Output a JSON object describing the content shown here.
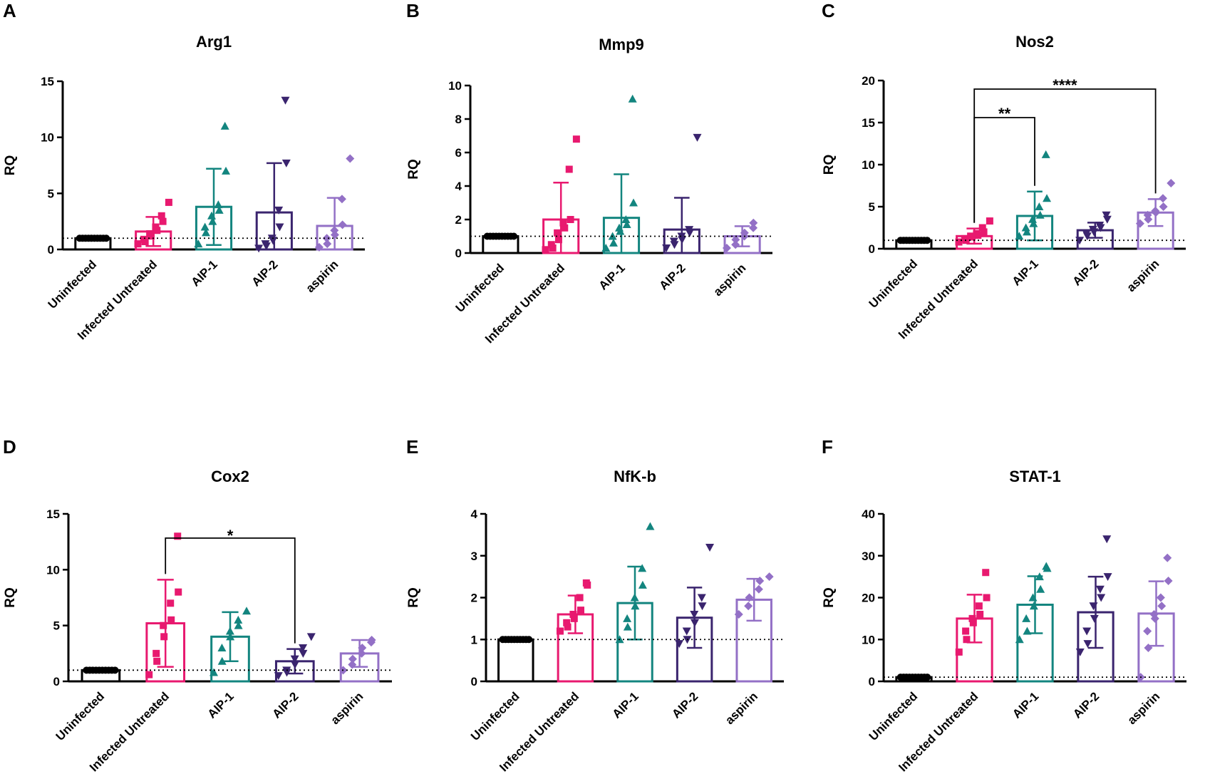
{
  "figure": {
    "group_colors": {
      "Uninfected": "#000000",
      "Infected Untreated": "#e8196f",
      "AIP-1": "#13857f",
      "AIP-2": "#3a246e",
      "aspirin": "#9370c6"
    },
    "markers": {
      "Uninfected": "circle",
      "Infected Untreated": "square",
      "AIP-1": "triangle-up",
      "AIP-2": "triangle-down",
      "aspirin": "diamond"
    }
  },
  "chart_data": [
    {
      "panel": "A",
      "type": "bar",
      "title": "Arg1",
      "ylabel": "RQ",
      "ylim": [
        0,
        15
      ],
      "yticks": [
        0,
        5,
        10,
        15
      ],
      "reference_line": 1,
      "categories": [
        "Uninfected",
        "Infected Untreated",
        "AIP-1",
        "AIP-2",
        "aspirin"
      ],
      "values": [
        1.0,
        1.6,
        3.8,
        3.3,
        2.1
      ],
      "errors": [
        0,
        1.3,
        3.4,
        4.4,
        2.5
      ],
      "points": [
        [
          1,
          1,
          1,
          1,
          1,
          1,
          1,
          1,
          1,
          1
        ],
        [
          0.5,
          0.7,
          0.9,
          1.2,
          1.4,
          1.7,
          2.0,
          2.5,
          3.0,
          4.2
        ],
        [
          0.5,
          1.5,
          2.0,
          2.5,
          3.0,
          3.5,
          4.0,
          7.0,
          11.0
        ],
        [
          0.1,
          0.3,
          0.5,
          0.8,
          1.0,
          2.0,
          3.5,
          7.7,
          13.3
        ],
        [
          0.2,
          0.5,
          1.0,
          1.3,
          1.7,
          2.2,
          4.5,
          8.1
        ]
      ],
      "significance": []
    },
    {
      "panel": "B",
      "type": "bar",
      "title": "Mmp9",
      "ylabel": "RQ",
      "ylim": [
        0,
        10
      ],
      "yticks": [
        0,
        2,
        4,
        6,
        8,
        10
      ],
      "reference_line": 1,
      "categories": [
        "Uninfected",
        "Infected Untreated",
        "AIP-1",
        "AIP-2",
        "aspirin"
      ],
      "values": [
        1.0,
        2.0,
        2.1,
        1.4,
        1.0
      ],
      "errors": [
        0,
        2.2,
        2.6,
        1.9,
        0.6
      ],
      "points": [
        [
          1,
          1,
          1,
          1,
          1,
          1,
          1,
          1,
          1,
          1
        ],
        [
          0.2,
          0.3,
          0.5,
          0.8,
          1.2,
          1.5,
          1.8,
          2.0,
          5.0,
          6.8
        ],
        [
          0.3,
          0.6,
          1.0,
          1.3,
          1.5,
          1.7,
          2.0,
          3.0,
          9.2
        ],
        [
          0.3,
          0.5,
          0.7,
          0.8,
          1.0,
          1.2,
          1.4,
          6.9
        ],
        [
          0.3,
          0.5,
          0.8,
          1.0,
          1.2,
          1.5,
          1.8
        ]
      ],
      "significance": []
    },
    {
      "panel": "C",
      "type": "bar",
      "title": "Nos2",
      "ylabel": "RQ",
      "ylim": [
        0,
        20
      ],
      "yticks": [
        0,
        5,
        10,
        15,
        20
      ],
      "reference_line": 1,
      "categories": [
        "Uninfected",
        "Infected Untreated",
        "AIP-1",
        "AIP-2",
        "aspirin"
      ],
      "values": [
        1.0,
        1.5,
        3.9,
        2.2,
        4.3
      ],
      "errors": [
        0,
        0.9,
        2.9,
        0.9,
        1.6
      ],
      "points": [
        [
          1,
          1,
          1,
          1,
          1,
          1,
          1,
          1,
          1,
          1
        ],
        [
          0.8,
          1.0,
          1.2,
          1.4,
          1.5,
          1.6,
          1.8,
          2.0,
          2.5,
          3.3
        ],
        [
          1.5,
          2.0,
          2.5,
          3.0,
          3.5,
          4.0,
          5.0,
          6.0,
          11.2
        ],
        [
          1.0,
          1.5,
          1.8,
          2.0,
          2.3,
          2.5,
          2.8,
          3.5,
          4.0
        ],
        [
          3.0,
          3.5,
          4.0,
          4.3,
          4.5,
          5.0,
          6.0,
          7.8
        ]
      ],
      "significance": [
        {
          "from": "Infected Untreated",
          "to": "AIP-1",
          "label": "**"
        },
        {
          "from": "Infected Untreated",
          "to": "aspirin",
          "label": "****"
        }
      ]
    },
    {
      "panel": "D",
      "type": "bar",
      "title": "Cox2",
      "ylabel": "RQ",
      "ylim": [
        0,
        15
      ],
      "yticks": [
        0,
        5,
        10,
        15
      ],
      "reference_line": 1,
      "categories": [
        "Uninfected",
        "Infected Untreated",
        "AIP-1",
        "AIP-2",
        "aspirin"
      ],
      "values": [
        1.0,
        5.2,
        4.0,
        1.8,
        2.5
      ],
      "errors": [
        0,
        3.9,
        2.2,
        1.1,
        1.2
      ],
      "points": [
        [
          1,
          1,
          1,
          1,
          1,
          1,
          1,
          1,
          1,
          1
        ],
        [
          0.6,
          1.8,
          2.5,
          4.0,
          5.0,
          5.5,
          7.0,
          8.0,
          13.0
        ],
        [
          0.8,
          1.8,
          3.0,
          4.0,
          4.5,
          5.0,
          5.5,
          6.3
        ],
        [
          0.5,
          0.8,
          1.0,
          1.5,
          2.0,
          2.5,
          3.0,
          4.0
        ],
        [
          1.0,
          1.5,
          2.0,
          2.5,
          3.0,
          3.5,
          3.7
        ]
      ],
      "significance": [
        {
          "from": "Infected Untreated",
          "to": "AIP-2",
          "label": "*"
        }
      ]
    },
    {
      "panel": "E",
      "type": "bar",
      "title": "NfK-b",
      "ylabel": "RQ",
      "ylim": [
        0,
        4
      ],
      "yticks": [
        0,
        1,
        2,
        3,
        4
      ],
      "reference_line": 1,
      "categories": [
        "Uninfected",
        "Infected Untreated",
        "AIP-1",
        "AIP-2",
        "aspirin"
      ],
      "values": [
        1.0,
        1.6,
        1.87,
        1.52,
        1.95
      ],
      "errors": [
        0,
        0.45,
        0.87,
        0.72,
        0.5
      ],
      "points": [
        [
          1,
          1,
          1,
          1,
          1,
          1,
          1,
          1,
          1,
          1
        ],
        [
          1.2,
          1.3,
          1.4,
          1.5,
          1.6,
          1.7,
          2.0,
          2.3,
          2.35
        ],
        [
          1.0,
          1.3,
          1.5,
          1.8,
          2.0,
          2.3,
          2.7,
          3.7
        ],
        [
          0.9,
          1.0,
          1.2,
          1.4,
          1.6,
          1.8,
          2.0,
          3.2
        ],
        [
          1.6,
          1.8,
          2.0,
          2.2,
          2.4,
          2.5
        ]
      ],
      "significance": []
    },
    {
      "panel": "F",
      "type": "bar",
      "title": "STAT-1",
      "ylabel": "RQ",
      "ylim": [
        0,
        40
      ],
      "yticks": [
        0,
        10,
        20,
        30,
        40
      ],
      "reference_line": 1,
      "categories": [
        "Uninfected",
        "Infected Untreated",
        "AIP-1",
        "AIP-2",
        "aspirin"
      ],
      "values": [
        1.0,
        15.0,
        18.3,
        16.5,
        16.2
      ],
      "errors": [
        0,
        5.7,
        6.8,
        8.5,
        7.7
      ],
      "points": [
        [
          1,
          1,
          1,
          1,
          1,
          1,
          1,
          1,
          1,
          1
        ],
        [
          7,
          10,
          12,
          14,
          15,
          16,
          18,
          20,
          26
        ],
        [
          10,
          12,
          15,
          18,
          20,
          22,
          25,
          27,
          27.5
        ],
        [
          7,
          9,
          12,
          15,
          18,
          20,
          22,
          25,
          34
        ],
        [
          1,
          8,
          12,
          15,
          16,
          18,
          20,
          24,
          29.5
        ]
      ],
      "significance": []
    }
  ]
}
